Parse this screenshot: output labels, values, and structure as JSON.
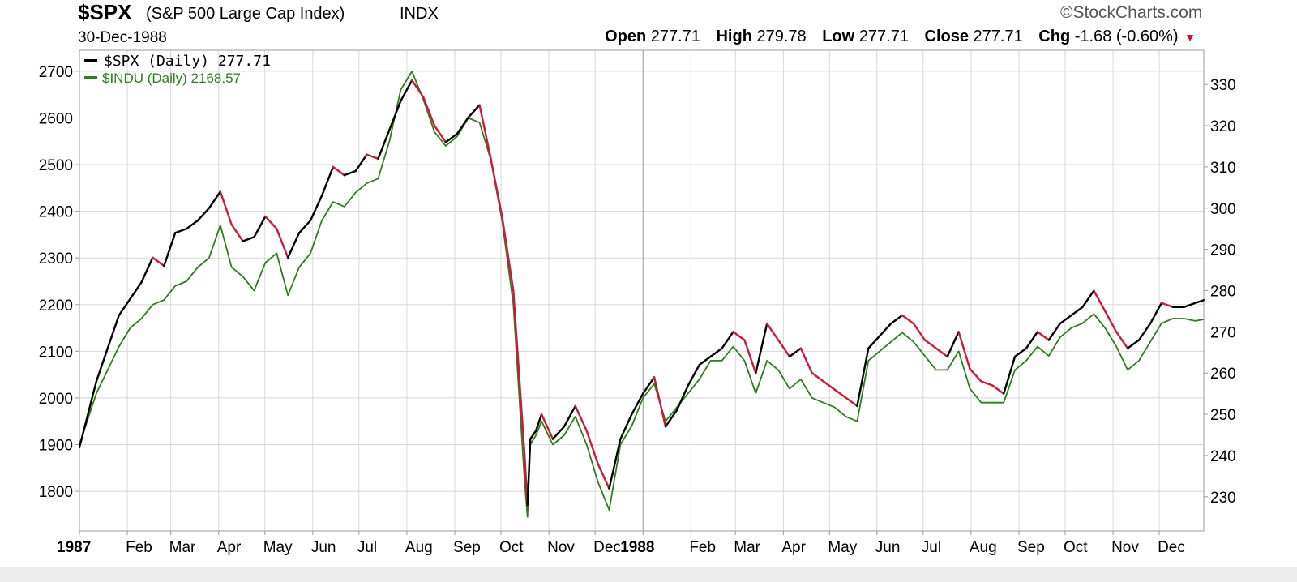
{
  "header": {
    "symbol": "$SPX",
    "name": "(S&P 500 Large Cap Index)",
    "exchange": "INDX",
    "brand": "©StockCharts.com",
    "date": "30-Dec-1988",
    "open_label": "Open",
    "open_value": "277.71",
    "high_label": "High",
    "high_value": "279.78",
    "low_label": "Low",
    "low_value": "277.71",
    "close_label": "Close",
    "close_value": "277.71",
    "chg_label": "Chg",
    "chg_value": "-1.68 (-0.60%)",
    "chg_arrow": "▼"
  },
  "legend": {
    "spx": "$SPX (Daily) 277.71",
    "indu": "$INDU (Daily) 2168.57"
  },
  "colors": {
    "up": "#000000",
    "down": "#cc1a3a",
    "indu": "#2e7d1e",
    "grid": "#d8d8d8",
    "frame": "#9a9a9a"
  },
  "chart_data": {
    "type": "line",
    "left_axis": {
      "ticks": [
        1800,
        1900,
        2000,
        2100,
        2200,
        2300,
        2400,
        2500,
        2600,
        2700
      ],
      "range": [
        1715,
        2745
      ]
    },
    "right_axis": {
      "ticks": [
        230,
        240,
        250,
        260,
        270,
        280,
        290,
        300,
        310,
        320,
        330
      ],
      "range": [
        221.7,
        338.3
      ]
    },
    "x_ticks": [
      {
        "label": "1987",
        "bold": true,
        "x": 1987.0
      },
      {
        "label": "Feb",
        "x": 1987.085
      },
      {
        "label": "Mar",
        "x": 1987.162
      },
      {
        "label": "Apr",
        "x": 1987.247
      },
      {
        "label": "May",
        "x": 1987.329
      },
      {
        "label": "Jun",
        "x": 1987.414
      },
      {
        "label": "Jul",
        "x": 1987.496
      },
      {
        "label": "Aug",
        "x": 1987.581
      },
      {
        "label": "Sep",
        "x": 1987.666
      },
      {
        "label": "Oct",
        "x": 1987.748
      },
      {
        "label": "Nov",
        "x": 1987.833
      },
      {
        "label": "Dec",
        "x": 1987.915
      },
      {
        "label": "1988",
        "bold": true,
        "x": 1988.0
      },
      {
        "label": "Feb",
        "x": 1988.085
      },
      {
        "label": "Mar",
        "x": 1988.164
      },
      {
        "label": "Apr",
        "x": 1988.249
      },
      {
        "label": "May",
        "x": 1988.331
      },
      {
        "label": "Jun",
        "x": 1988.415
      },
      {
        "label": "Jul",
        "x": 1988.497
      },
      {
        "label": "Aug",
        "x": 1988.582
      },
      {
        "label": "Sep",
        "x": 1988.667
      },
      {
        "label": "Oct",
        "x": 1988.749
      },
      {
        "label": "Nov",
        "x": 1988.834
      },
      {
        "label": "Dec",
        "x": 1988.916
      }
    ],
    "x_range": [
      1987.0,
      1988.995
    ],
    "series": [
      {
        "name": "$SPX (Daily)",
        "axis": "right",
        "x": [
          1987.0,
          1987.03,
          1987.05,
          1987.07,
          1987.09,
          1987.11,
          1987.13,
          1987.15,
          1987.17,
          1987.19,
          1987.21,
          1987.23,
          1987.25,
          1987.27,
          1987.29,
          1987.31,
          1987.33,
          1987.35,
          1987.37,
          1987.39,
          1987.41,
          1987.43,
          1987.45,
          1987.47,
          1987.49,
          1987.51,
          1987.53,
          1987.55,
          1987.57,
          1987.59,
          1987.61,
          1987.63,
          1987.65,
          1987.67,
          1987.69,
          1987.71,
          1987.73,
          1987.75,
          1987.77,
          1987.79,
          1987.795,
          1987.8,
          1987.81,
          1987.82,
          1987.84,
          1987.86,
          1987.88,
          1987.9,
          1987.92,
          1987.94,
          1987.96,
          1987.98,
          1988.0,
          1988.02,
          1988.04,
          1988.06,
          1988.08,
          1988.1,
          1988.12,
          1988.14,
          1988.16,
          1988.18,
          1988.2,
          1988.22,
          1988.24,
          1988.26,
          1988.28,
          1988.3,
          1988.32,
          1988.34,
          1988.36,
          1988.38,
          1988.4,
          1988.42,
          1988.44,
          1988.46,
          1988.48,
          1988.5,
          1988.52,
          1988.54,
          1988.56,
          1988.58,
          1988.6,
          1988.62,
          1988.64,
          1988.66,
          1988.68,
          1988.7,
          1988.72,
          1988.74,
          1988.76,
          1988.78,
          1988.8,
          1988.82,
          1988.84,
          1988.86,
          1988.88,
          1988.9,
          1988.92,
          1988.94,
          1988.96,
          1988.98,
          1988.995
        ],
        "values": [
          242,
          258,
          266,
          274,
          278,
          282,
          288,
          286,
          294,
          295,
          297,
          300,
          304,
          296,
          292,
          293,
          298,
          295,
          288,
          294,
          297,
          303,
          310,
          308,
          309,
          313,
          312,
          319,
          326,
          331,
          327,
          320,
          316,
          318,
          322,
          325,
          312,
          298,
          280,
          240,
          228,
          244,
          246,
          250,
          244,
          247,
          252,
          246,
          238,
          232,
          244,
          250,
          255,
          259,
          247,
          251,
          257,
          262,
          264,
          266,
          270,
          268,
          260,
          272,
          268,
          264,
          266,
          260,
          258,
          256,
          254,
          252,
          266,
          269,
          272,
          274,
          272,
          268,
          266,
          264,
          270,
          261,
          258,
          257,
          255,
          264,
          266,
          270,
          268,
          272,
          274,
          276,
          280,
          275,
          270,
          266,
          268,
          272,
          277,
          276,
          276,
          277,
          277.7
        ]
      },
      {
        "name": "$INDU (Daily)",
        "axis": "left",
        "x": [
          1987.0,
          1987.03,
          1987.05,
          1987.07,
          1987.09,
          1987.11,
          1987.13,
          1987.15,
          1987.17,
          1987.19,
          1987.21,
          1987.23,
          1987.25,
          1987.27,
          1987.29,
          1987.31,
          1987.33,
          1987.35,
          1987.37,
          1987.39,
          1987.41,
          1987.43,
          1987.45,
          1987.47,
          1987.49,
          1987.51,
          1987.53,
          1987.55,
          1987.57,
          1987.59,
          1987.61,
          1987.63,
          1987.65,
          1987.67,
          1987.69,
          1987.71,
          1987.73,
          1987.75,
          1987.77,
          1987.79,
          1987.795,
          1987.8,
          1987.81,
          1987.82,
          1987.84,
          1987.86,
          1987.88,
          1987.9,
          1987.92,
          1987.94,
          1987.96,
          1987.98,
          1988.0,
          1988.02,
          1988.04,
          1988.06,
          1988.08,
          1988.1,
          1988.12,
          1988.14,
          1988.16,
          1988.18,
          1988.2,
          1988.22,
          1988.24,
          1988.26,
          1988.28,
          1988.3,
          1988.32,
          1988.34,
          1988.36,
          1988.38,
          1988.4,
          1988.42,
          1988.44,
          1988.46,
          1988.48,
          1988.5,
          1988.52,
          1988.54,
          1988.56,
          1988.58,
          1988.6,
          1988.62,
          1988.64,
          1988.66,
          1988.68,
          1988.7,
          1988.72,
          1988.74,
          1988.76,
          1988.78,
          1988.8,
          1988.82,
          1988.84,
          1988.86,
          1988.88,
          1988.9,
          1988.92,
          1988.94,
          1988.96,
          1988.98,
          1988.995
        ],
        "values": [
          1900,
          2010,
          2060,
          2110,
          2150,
          2170,
          2200,
          2210,
          2240,
          2250,
          2280,
          2300,
          2370,
          2280,
          2260,
          2230,
          2290,
          2310,
          2220,
          2280,
          2310,
          2380,
          2420,
          2410,
          2440,
          2460,
          2470,
          2550,
          2660,
          2700,
          2640,
          2570,
          2540,
          2560,
          2600,
          2590,
          2510,
          2380,
          2200,
          1820,
          1745,
          1900,
          1920,
          1950,
          1900,
          1920,
          1960,
          1900,
          1820,
          1760,
          1900,
          1940,
          2000,
          2030,
          1950,
          1980,
          2010,
          2040,
          2080,
          2080,
          2110,
          2080,
          2010,
          2080,
          2060,
          2020,
          2040,
          2000,
          1990,
          1980,
          1960,
          1950,
          2080,
          2100,
          2120,
          2140,
          2120,
          2090,
          2060,
          2060,
          2100,
          2020,
          1990,
          1990,
          1990,
          2060,
          2080,
          2110,
          2090,
          2130,
          2150,
          2160,
          2180,
          2150,
          2110,
          2060,
          2080,
          2120,
          2160,
          2170,
          2170,
          2165,
          2168.57
        ]
      }
    ]
  }
}
